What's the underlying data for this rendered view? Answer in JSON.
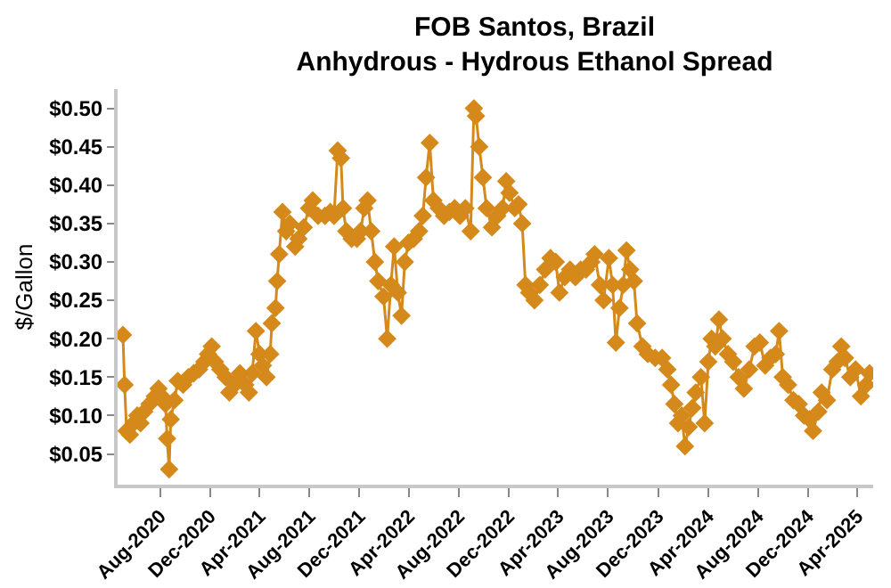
{
  "chart_data": {
    "type": "line",
    "title": "FOB Santos, Brazil",
    "subtitle": "Anhydrous - Hydrous Ethanol Spread",
    "ylabel": "$/Gallon",
    "marker": "diamond",
    "line_style": "solid",
    "grid": false,
    "x": [
      "2020-05-02",
      "2020-05-06",
      "2020-05-11",
      "2020-05-19",
      "2020-05-28",
      "2020-06-06",
      "2020-06-14",
      "2020-06-23",
      "2020-07-06",
      "2020-07-19",
      "2020-07-28",
      "2020-08-05",
      "2020-08-14",
      "2020-08-18",
      "2020-08-23",
      "2020-08-27",
      "2020-09-05",
      "2020-09-13",
      "2020-09-26",
      "2020-10-09",
      "2020-10-22",
      "2020-11-04",
      "2020-11-17",
      "2020-11-26",
      "2020-12-05",
      "2020-12-13",
      "2020-12-26",
      "2021-01-08",
      "2021-01-17",
      "2021-01-30",
      "2021-02-12",
      "2021-02-25",
      "2021-03-06",
      "2021-03-14",
      "2021-03-23",
      "2021-04-01",
      "2021-04-09",
      "2021-04-18",
      "2021-04-27",
      "2021-05-01",
      "2021-05-10",
      "2021-05-14",
      "2021-05-19",
      "2021-05-27",
      "2021-06-05",
      "2021-06-14",
      "2021-06-27",
      "2021-07-05",
      "2021-07-18",
      "2021-07-31",
      "2021-08-09",
      "2021-08-22",
      "2021-09-08",
      "2021-09-21",
      "2021-09-30",
      "2021-10-09",
      "2021-10-17",
      "2021-10-22",
      "2021-10-30",
      "2021-11-12",
      "2021-11-25",
      "2021-12-04",
      "2021-12-13",
      "2021-12-21",
      "2021-12-30",
      "2022-01-08",
      "2022-01-16",
      "2022-01-29",
      "2022-02-07",
      "2022-02-16",
      "2022-02-24",
      "2022-03-05",
      "2022-03-14",
      "2022-03-22",
      "2022-03-31",
      "2022-04-13",
      "2022-04-26",
      "2022-05-05",
      "2022-05-13",
      "2022-05-22",
      "2022-05-31",
      "2022-06-13",
      "2022-06-26",
      "2022-07-09",
      "2022-07-22",
      "2022-08-04",
      "2022-08-17",
      "2022-08-30",
      "2022-09-07",
      "2022-09-12",
      "2022-09-20",
      "2022-09-29",
      "2022-10-08",
      "2022-10-21",
      "2022-11-03",
      "2022-11-16",
      "2022-11-25",
      "2022-12-03",
      "2022-12-16",
      "2022-12-25",
      "2023-01-03",
      "2023-01-11",
      "2023-01-20",
      "2023-02-02",
      "2023-02-15",
      "2023-02-28",
      "2023-03-13",
      "2023-03-26",
      "2023-04-04",
      "2023-04-17",
      "2023-04-30",
      "2023-05-13",
      "2023-05-26",
      "2023-06-08",
      "2023-06-21",
      "2023-06-29",
      "2023-07-12",
      "2023-07-21",
      "2023-08-03",
      "2023-08-12",
      "2023-08-20",
      "2023-08-29",
      "2023-09-07",
      "2023-09-15",
      "2023-09-24",
      "2023-10-03",
      "2023-10-11",
      "2023-10-24",
      "2023-11-06",
      "2023-11-24",
      "2023-12-11",
      "2023-12-24",
      "2024-01-02",
      "2024-01-10",
      "2024-01-19",
      "2024-01-28",
      "2024-02-05",
      "2024-02-14",
      "2024-02-23",
      "2024-03-02",
      "2024-03-15",
      "2024-03-24",
      "2024-04-02",
      "2024-04-10",
      "2024-04-19",
      "2024-04-28",
      "2024-05-07",
      "2024-05-20",
      "2024-06-02",
      "2024-06-15",
      "2024-06-28",
      "2024-07-11",
      "2024-07-24",
      "2024-08-06",
      "2024-08-19",
      "2024-09-01",
      "2024-09-14",
      "2024-09-22",
      "2024-10-01",
      "2024-10-14",
      "2024-10-27",
      "2024-11-09",
      "2024-11-22",
      "2024-12-05",
      "2024-12-14",
      "2024-12-27",
      "2025-01-04",
      "2025-01-17",
      "2025-01-30",
      "2025-02-12",
      "2025-02-21",
      "2025-03-02",
      "2025-03-15",
      "2025-03-28",
      "2025-04-10",
      "2025-04-23",
      "2025-05-01"
    ],
    "series": [
      {
        "color": "#d4891a",
        "values": [
          0.205,
          0.14,
          0.08,
          0.075,
          0.09,
          0.1,
          0.09,
          0.105,
          0.115,
          0.125,
          0.135,
          0.125,
          0.115,
          0.07,
          0.03,
          0.095,
          0.12,
          0.145,
          0.14,
          0.15,
          0.155,
          0.16,
          0.17,
          0.18,
          0.19,
          0.17,
          0.16,
          0.15,
          0.13,
          0.14,
          0.155,
          0.14,
          0.13,
          0.155,
          0.21,
          0.18,
          0.165,
          0.15,
          0.18,
          0.22,
          0.24,
          0.275,
          0.31,
          0.365,
          0.34,
          0.35,
          0.32,
          0.33,
          0.345,
          0.37,
          0.38,
          0.36,
          0.36,
          0.365,
          0.36,
          0.445,
          0.435,
          0.37,
          0.34,
          0.33,
          0.33,
          0.34,
          0.37,
          0.38,
          0.34,
          0.3,
          0.275,
          0.255,
          0.2,
          0.27,
          0.32,
          0.26,
          0.23,
          0.3,
          0.325,
          0.33,
          0.34,
          0.36,
          0.41,
          0.455,
          0.38,
          0.37,
          0.36,
          0.365,
          0.37,
          0.36,
          0.37,
          0.34,
          0.5,
          0.49,
          0.45,
          0.41,
          0.37,
          0.345,
          0.36,
          0.37,
          0.405,
          0.39,
          0.37,
          0.375,
          0.35,
          0.27,
          0.26,
          0.25,
          0.27,
          0.29,
          0.305,
          0.3,
          0.26,
          0.28,
          0.29,
          0.28,
          0.29,
          0.29,
          0.3,
          0.31,
          0.27,
          0.25,
          0.305,
          0.27,
          0.195,
          0.24,
          0.27,
          0.315,
          0.29,
          0.275,
          0.22,
          0.19,
          0.18,
          0.175,
          0.175,
          0.16,
          0.14,
          0.115,
          0.09,
          0.1,
          0.06,
          0.085,
          0.11,
          0.13,
          0.15,
          0.09,
          0.17,
          0.2,
          0.19,
          0.225,
          0.2,
          0.18,
          0.17,
          0.15,
          0.135,
          0.16,
          0.19,
          0.195,
          0.165,
          0.175,
          0.18,
          0.21,
          0.15,
          0.14,
          0.12,
          0.115,
          0.1,
          0.095,
          0.08,
          0.105,
          0.13,
          0.12,
          0.16,
          0.17,
          0.19,
          0.175,
          0.15,
          0.16,
          0.125,
          0.14,
          0.155
        ]
      }
    ],
    "xlim": [
      "2020-04-19",
      "2025-05-10"
    ],
    "xticks": [
      {
        "value": "2020-08-01",
        "label": "Aug-2020"
      },
      {
        "value": "2020-12-01",
        "label": "Dec-2020"
      },
      {
        "value": "2021-04-01",
        "label": "Apr-2021"
      },
      {
        "value": "2021-08-01",
        "label": "Aug-2021"
      },
      {
        "value": "2021-12-01",
        "label": "Dec-2021"
      },
      {
        "value": "2022-04-01",
        "label": "Apr-2022"
      },
      {
        "value": "2022-08-01",
        "label": "Aug-2022"
      },
      {
        "value": "2022-12-01",
        "label": "Dec-2022"
      },
      {
        "value": "2023-04-01",
        "label": "Apr-2023"
      },
      {
        "value": "2023-08-01",
        "label": "Aug-2023"
      },
      {
        "value": "2023-12-01",
        "label": "Dec-2023"
      },
      {
        "value": "2024-04-01",
        "label": "Apr-2024"
      },
      {
        "value": "2024-08-01",
        "label": "Aug-2024"
      },
      {
        "value": "2024-12-01",
        "label": "Dec-2024"
      },
      {
        "value": "2025-04-01",
        "label": "Apr-2025"
      }
    ],
    "ylim": [
      0.01,
      0.525
    ],
    "yticks": [
      {
        "value": 0.05,
        "label": "$0.05"
      },
      {
        "value": 0.1,
        "label": "$0.10"
      },
      {
        "value": 0.15,
        "label": "$0.15"
      },
      {
        "value": 0.2,
        "label": "$0.20"
      },
      {
        "value": 0.25,
        "label": "$0.25"
      },
      {
        "value": 0.3,
        "label": "$0.30"
      },
      {
        "value": 0.35,
        "label": "$0.35"
      },
      {
        "value": 0.4,
        "label": "$0.40"
      },
      {
        "value": 0.45,
        "label": "$0.45"
      },
      {
        "value": 0.5,
        "label": "$0.50"
      }
    ]
  }
}
